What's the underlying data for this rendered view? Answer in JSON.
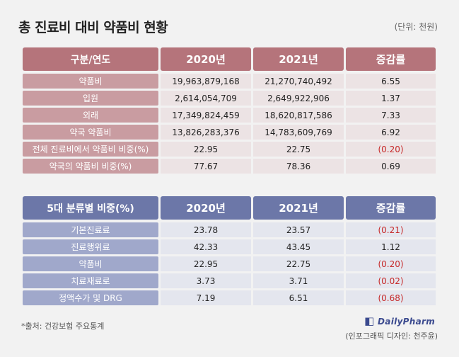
{
  "title": "총 진료비 대비 약품비 현황",
  "unit": "(단위: 천원)",
  "table1": {
    "headers": [
      "구분/연도",
      "2020년",
      "2021년",
      "증감률"
    ],
    "rows": [
      {
        "label": "약품비",
        "v2020": "19,963,879,168",
        "v2021": "21,270,740,492",
        "change": "6.55"
      },
      {
        "label": "입원",
        "v2020": "2,614,054,709",
        "v2021": "2,649,922,906",
        "change": "1.37"
      },
      {
        "label": "외래",
        "v2020": "17,349,824,459",
        "v2021": "18,620,817,586",
        "change": "7.33"
      },
      {
        "label": "약국 약품비",
        "v2020": "13,826,283,376",
        "v2021": "14,783,609,769",
        "change": "6.92"
      },
      {
        "label": "전체 진료비에서 약품비 비중(%)",
        "v2020": "22.95",
        "v2021": "22.75",
        "change": "(0.20)"
      },
      {
        "label": "약국의 약품비 비중(%)",
        "v2020": "77.67",
        "v2021": "78.36",
        "change": "0.69"
      }
    ]
  },
  "table2": {
    "headers": [
      "5대 분류별 비중(%)",
      "2020년",
      "2021년",
      "증감률"
    ],
    "rows": [
      {
        "label": "기본진료료",
        "v2020": "23.78",
        "v2021": "23.57",
        "change": "(0.21)"
      },
      {
        "label": "진료행위료",
        "v2020": "42.33",
        "v2021": "43.45",
        "change": "1.12"
      },
      {
        "label": "약품비",
        "v2020": "22.95",
        "v2021": "22.75",
        "change": "(0.20)"
      },
      {
        "label": "치료재료로",
        "v2020": "3.73",
        "v2021": "3.71",
        "change": "(0.02)"
      },
      {
        "label": "정액수가 및 DRG",
        "v2020": "7.19",
        "v2021": "6.51",
        "change": "(0.68)"
      }
    ]
  },
  "source": "*출처: 건강보험 주요통계",
  "logo_text": "DailyPharm",
  "credit": "(인포그래픽 디자인: 천주윤)",
  "colors": {
    "table1_header": "#b5747b",
    "table2_header": "#6c77a8",
    "negative": "#c62828"
  }
}
